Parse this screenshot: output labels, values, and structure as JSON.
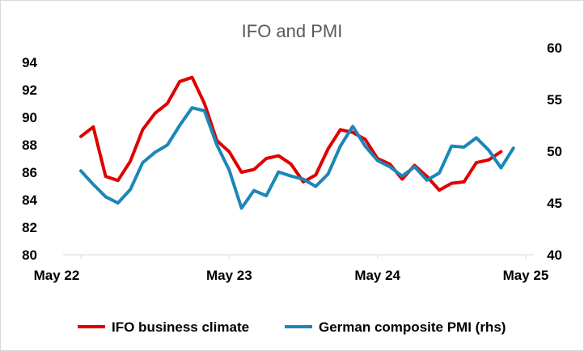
{
  "chart_data": {
    "type": "line",
    "title": "IFO and PMI",
    "x_tick_labels": [
      "May 22",
      "May 23",
      "May 24",
      "May 25"
    ],
    "y_left": {
      "ylim": [
        80,
        94
      ],
      "ticks": [
        "80",
        "82",
        "84",
        "86",
        "88",
        "90",
        "92",
        "94"
      ]
    },
    "y_right": {
      "ylim": [
        40,
        60
      ],
      "ticks": [
        "40",
        "45",
        "50",
        "55",
        "60"
      ]
    },
    "grid": false,
    "legend_position": "bottom",
    "series": [
      {
        "name": "IFO business climate",
        "axis": "left",
        "color": "#e00000",
        "x": [
          "2022-05",
          "2022-06",
          "2022-07",
          "2022-08",
          "2022-09",
          "2022-10",
          "2022-11",
          "2022-12",
          "2023-01",
          "2023-02",
          "2023-03",
          "2023-04",
          "2023-05",
          "2023-06",
          "2023-07",
          "2023-08",
          "2023-09",
          "2023-10",
          "2023-11",
          "2023-12",
          "2024-01",
          "2024-02",
          "2024-03",
          "2024-04",
          "2024-05",
          "2024-06",
          "2024-07",
          "2024-08",
          "2024-09",
          "2024-10",
          "2024-11",
          "2024-12",
          "2025-01",
          "2025-02",
          "2025-03",
          "2025-04",
          "2025-05"
        ],
        "values": [
          88.6,
          89.3,
          85.7,
          85.4,
          86.8,
          89.1,
          90.3,
          91.0,
          92.6,
          92.9,
          91.0,
          88.3,
          87.5,
          86.0,
          86.2,
          87.0,
          87.2,
          86.6,
          85.3,
          85.8,
          87.7,
          89.1,
          88.9,
          88.4,
          87.0,
          86.6,
          85.5,
          86.5,
          85.7,
          84.7,
          85.2,
          85.3,
          86.7,
          86.9,
          87.5,
          null,
          null
        ]
      },
      {
        "name": "German composite PMI (rhs)",
        "axis": "right",
        "color": "#1b87b8",
        "x": [
          "2022-05",
          "2022-06",
          "2022-07",
          "2022-08",
          "2022-09",
          "2022-10",
          "2022-11",
          "2022-12",
          "2023-01",
          "2023-02",
          "2023-03",
          "2023-04",
          "2023-05",
          "2023-06",
          "2023-07",
          "2023-08",
          "2023-09",
          "2023-10",
          "2023-11",
          "2023-12",
          "2024-01",
          "2024-02",
          "2024-03",
          "2024-04",
          "2024-05",
          "2024-06",
          "2024-07",
          "2024-08",
          "2024-09",
          "2024-10",
          "2024-11",
          "2024-12",
          "2025-01",
          "2025-02",
          "2025-03",
          "2025-04",
          "2025-05"
        ],
        "values": [
          48.1,
          46.8,
          45.6,
          45.0,
          46.3,
          48.9,
          49.9,
          50.6,
          52.5,
          54.2,
          53.9,
          50.6,
          48.2,
          44.5,
          46.2,
          45.7,
          48.0,
          47.6,
          47.3,
          46.6,
          47.8,
          50.5,
          52.4,
          50.5,
          49.1,
          48.5,
          47.6,
          48.5,
          47.2,
          47.9,
          50.5,
          50.4,
          51.3,
          50.1,
          48.4,
          50.3,
          null
        ]
      }
    ]
  }
}
